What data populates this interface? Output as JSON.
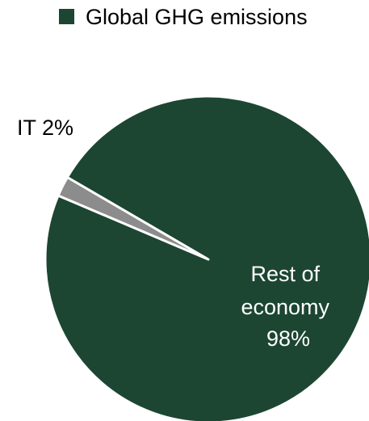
{
  "chart_data": {
    "type": "pie",
    "title": "",
    "legend": {
      "placement": "top",
      "entries": [
        {
          "label": "Global GHG emissions",
          "color": "#1c4632"
        }
      ]
    },
    "slices": [
      {
        "label": "IT",
        "value": 2,
        "percent_label": "2%",
        "color": "#8c8c8c"
      },
      {
        "label": "Rest of economy",
        "value": 98,
        "percent_label": "98%",
        "color": "#1c4632"
      }
    ],
    "slice_edge_color": "#ffffff"
  }
}
